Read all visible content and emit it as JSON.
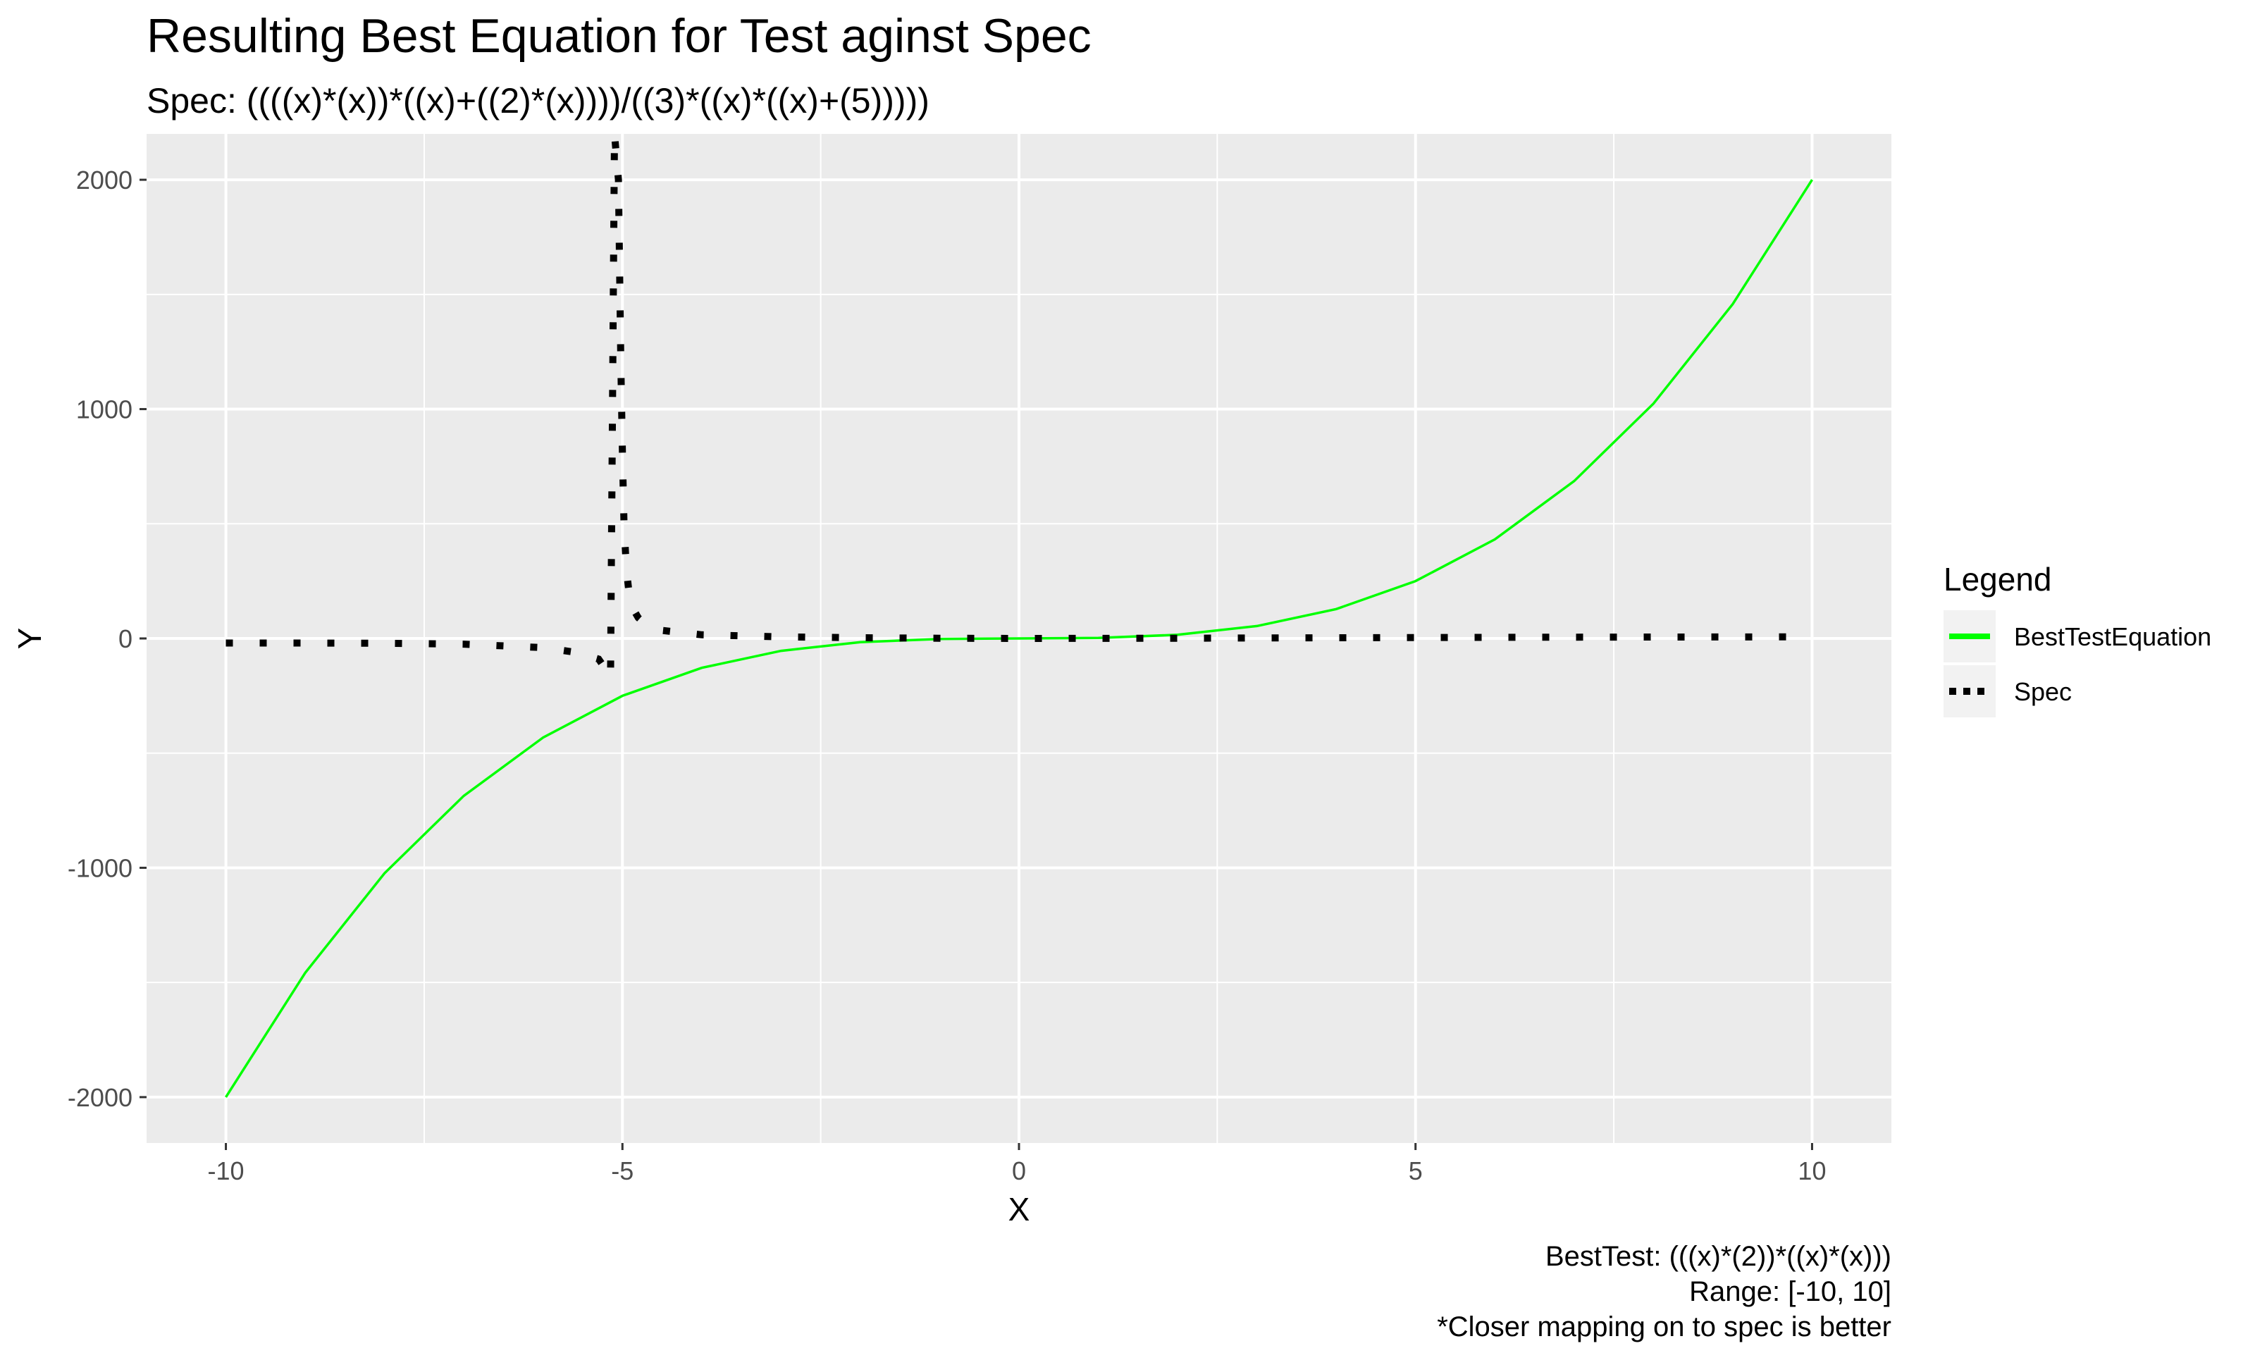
{
  "chart_data": {
    "type": "line",
    "title": "Resulting Best Equation for Test aginst Spec",
    "subtitle": "Spec: ((((x)*(x))*((x)+((2)*(x))))/((3)*((x)*((x)+(5)))))",
    "xlabel": "X",
    "ylabel": "Y",
    "xlim": [
      -11,
      11
    ],
    "ylim": [
      -2200,
      2200
    ],
    "xticks": [
      -10,
      -5,
      0,
      5,
      10
    ],
    "xtick_labels": [
      "-10",
      "-5",
      "0",
      "5",
      "10"
    ],
    "yticks": [
      -2000,
      -1000,
      0,
      1000,
      2000
    ],
    "ytick_labels": [
      "-2000",
      "-1000",
      "0",
      "1000",
      "2000"
    ],
    "grid": true,
    "legend": {
      "title": "Legend",
      "placement": "right",
      "entries": [
        "BestTestEquation",
        "Spec"
      ]
    },
    "series": [
      {
        "name": "BestTestEquation",
        "color": "#00ff00",
        "linestyle": "solid",
        "x": [
          -10,
          -9,
          -8,
          -7,
          -6,
          -5,
          -4,
          -3,
          -2,
          -1,
          0,
          1,
          2,
          3,
          4,
          5,
          6,
          7,
          8,
          9,
          10
        ],
        "y": [
          -2000,
          -1458,
          -1024,
          -686,
          -432,
          -250,
          -128,
          -54,
          -16,
          -2,
          0,
          2,
          16,
          54,
          128,
          250,
          432,
          686,
          1024,
          1458,
          2000
        ]
      },
      {
        "name": "Spec",
        "color": "#000000",
        "linestyle": "dotted",
        "x": [
          -10,
          -9,
          -8,
          -7,
          -6,
          -5.6,
          -5.3,
          -5.2,
          -5.15,
          -5.1,
          -5.05,
          -5.02,
          -5.0,
          -4.98,
          -4.95,
          -4.9,
          -4.8,
          -4.7,
          -4.5,
          -4,
          -3,
          -2,
          -1,
          0,
          1,
          2,
          3,
          4,
          5,
          6,
          7,
          8,
          9,
          10
        ],
        "y": [
          -20,
          -20,
          -21,
          -25,
          -40,
          -60,
          -90,
          -140,
          -170,
          2200,
          2000,
          1200,
          800,
          500,
          300,
          150,
          90,
          60,
          35,
          16,
          7,
          3,
          1,
          0,
          0.2,
          1,
          2,
          3,
          4,
          4.8,
          5.5,
          6.1,
          6.6,
          7
        ]
      }
    ],
    "caption_lines": [
      "BestTest: (((x)*(2))*((x)*(x)))",
      "Range: [-10, 10]",
      "*Closer mapping on to spec is better"
    ]
  }
}
